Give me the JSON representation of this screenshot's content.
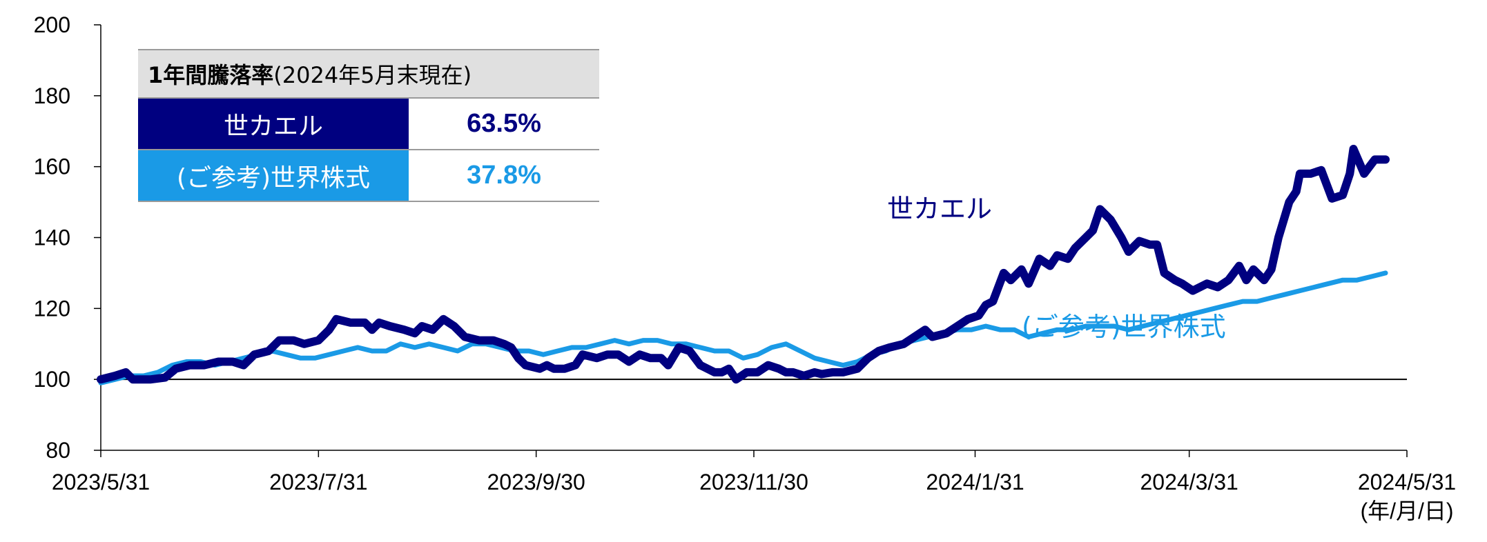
{
  "chart_data": {
    "type": "line",
    "title": "",
    "xlabel": "",
    "ylabel": "",
    "x_unit_label": "(年/月/日)",
    "ylim": [
      80,
      200
    ],
    "yticks": [
      80,
      100,
      120,
      140,
      160,
      180,
      200
    ],
    "xlim": [
      "2023/5/31",
      "2024/5/31"
    ],
    "xticks": [
      "2023/5/31",
      "2023/7/31",
      "2023/9/30",
      "2023/11/30",
      "2024/1/31",
      "2024/3/31",
      "2024/5/31"
    ],
    "reference_line": 100,
    "grid": false,
    "series": [
      {
        "name": "世カエル",
        "color": "#000080",
        "points": [
          [
            "2023/5/31",
            100
          ],
          [
            "2023/6/4",
            101
          ],
          [
            "2023/6/7",
            102
          ],
          [
            "2023/6/9",
            100
          ],
          [
            "2023/6/14",
            100
          ],
          [
            "2023/6/18",
            100.5
          ],
          [
            "2023/6/21",
            103
          ],
          [
            "2023/6/25",
            104
          ],
          [
            "2023/6/29",
            104
          ],
          [
            "2023/7/3",
            105
          ],
          [
            "2023/7/7",
            105
          ],
          [
            "2023/7/10",
            104
          ],
          [
            "2023/7/13",
            107
          ],
          [
            "2023/7/17",
            108
          ],
          [
            "2023/7/20",
            111
          ],
          [
            "2023/7/24",
            111
          ],
          [
            "2023/7/27",
            110
          ],
          [
            "2023/7/31",
            111
          ],
          [
            "2023/8/3",
            114
          ],
          [
            "2023/8/5",
            117
          ],
          [
            "2023/8/9",
            116
          ],
          [
            "2023/8/13",
            116
          ],
          [
            "2023/8/15",
            114
          ],
          [
            "2023/8/17",
            116
          ],
          [
            "2023/8/20",
            115
          ],
          [
            "2023/8/24",
            114
          ],
          [
            "2023/8/27",
            113
          ],
          [
            "2023/8/29",
            115
          ],
          [
            "2023/9/1",
            114
          ],
          [
            "2023/9/4",
            117
          ],
          [
            "2023/9/7",
            115
          ],
          [
            "2023/9/10",
            112
          ],
          [
            "2023/9/14",
            111
          ],
          [
            "2023/9/18",
            111
          ],
          [
            "2023/9/21",
            110
          ],
          [
            "2023/9/23",
            109
          ],
          [
            "2023/9/25",
            106
          ],
          [
            "2023/9/27",
            104
          ],
          [
            "2023/10/1",
            103
          ],
          [
            "2023/10/3",
            104
          ],
          [
            "2023/10/5",
            103
          ],
          [
            "2023/10/8",
            103
          ],
          [
            "2023/10/11",
            104
          ],
          [
            "2023/10/13",
            107
          ],
          [
            "2023/10/17",
            106
          ],
          [
            "2023/10/20",
            107
          ],
          [
            "2023/10/23",
            107
          ],
          [
            "2023/10/26",
            105
          ],
          [
            "2023/10/29",
            107
          ],
          [
            "2023/11/1",
            106
          ],
          [
            "2023/11/4",
            106
          ],
          [
            "2023/11/6",
            104
          ],
          [
            "2023/11/9",
            109
          ],
          [
            "2023/11/12",
            108
          ],
          [
            "2023/11/15",
            104
          ],
          [
            "2023/11/19",
            102
          ],
          [
            "2023/11/21",
            102
          ],
          [
            "2023/11/23",
            103
          ],
          [
            "2023/11/25",
            100
          ],
          [
            "2023/11/28",
            102
          ],
          [
            "2023/12/1",
            102
          ],
          [
            "2023/12/4",
            104
          ],
          [
            "2023/12/7",
            103
          ],
          [
            "2023/12/9",
            102
          ],
          [
            "2023/12/11",
            102
          ],
          [
            "2023/12/14",
            101
          ],
          [
            "2023/12/17",
            102
          ],
          [
            "2023/12/19",
            101.5
          ],
          [
            "2023/12/22",
            102
          ],
          [
            "2023/12/25",
            102
          ],
          [
            "2023/12/29",
            103
          ],
          [
            "2024/1/1",
            106
          ],
          [
            "2024/1/4",
            108
          ],
          [
            "2024/1/7",
            109
          ],
          [
            "2024/1/11",
            110
          ],
          [
            "2024/1/14",
            112
          ],
          [
            "2024/1/17",
            114
          ],
          [
            "2024/1/19",
            112
          ],
          [
            "2024/1/23",
            113
          ],
          [
            "2024/1/26",
            115
          ],
          [
            "2024/1/29",
            117
          ],
          [
            "2024/2/1",
            118
          ],
          [
            "2024/2/3",
            121
          ],
          [
            "2024/2/5",
            122
          ],
          [
            "2024/2/8",
            130
          ],
          [
            "2024/2/10",
            128
          ],
          [
            "2024/2/13",
            131
          ],
          [
            "2024/2/15",
            127
          ],
          [
            "2024/2/18",
            134
          ],
          [
            "2024/2/21",
            132
          ],
          [
            "2024/2/23",
            135
          ],
          [
            "2024/2/26",
            134
          ],
          [
            "2024/2/28",
            137
          ],
          [
            "2024/3/2",
            140
          ],
          [
            "2024/3/4",
            142
          ],
          [
            "2024/3/6",
            148
          ],
          [
            "2024/3/9",
            145
          ],
          [
            "2024/3/12",
            140
          ],
          [
            "2024/3/14",
            136
          ],
          [
            "2024/3/17",
            139
          ],
          [
            "2024/3/20",
            138
          ],
          [
            "2024/3/22",
            138
          ],
          [
            "2024/3/24",
            130
          ],
          [
            "2024/3/27",
            128
          ],
          [
            "2024/3/29",
            127
          ],
          [
            "2024/4/1",
            125
          ],
          [
            "2024/4/5",
            127
          ],
          [
            "2024/4/8",
            126
          ],
          [
            "2024/4/11",
            128
          ],
          [
            "2024/4/14",
            132
          ],
          [
            "2024/4/16",
            128
          ],
          [
            "2024/4/18",
            131
          ],
          [
            "2024/4/21",
            128
          ],
          [
            "2024/4/23",
            131
          ],
          [
            "2024/4/25",
            140
          ],
          [
            "2024/4/28",
            150
          ],
          [
            "2024/4/30",
            153
          ],
          [
            "2024/5/1",
            158
          ],
          [
            "2024/5/4",
            158
          ],
          [
            "2024/5/7",
            159
          ],
          [
            "2024/5/10",
            151
          ],
          [
            "2024/5/13",
            152
          ],
          [
            "2024/5/15",
            158
          ],
          [
            "2024/5/16",
            165
          ],
          [
            "2024/5/19",
            158
          ],
          [
            "2024/5/22",
            162
          ],
          [
            "2024/5/25",
            162
          ]
        ]
      },
      {
        "name": "(ご参考)世界株式",
        "color": "#1a9ae6",
        "points": [
          [
            "2023/5/31",
            99
          ],
          [
            "2023/6/4",
            100
          ],
          [
            "2023/6/8",
            101
          ],
          [
            "2023/6/12",
            101
          ],
          [
            "2023/6/16",
            102
          ],
          [
            "2023/6/20",
            104
          ],
          [
            "2023/6/24",
            105
          ],
          [
            "2023/6/28",
            105
          ],
          [
            "2023/7/2",
            104
          ],
          [
            "2023/7/6",
            105
          ],
          [
            "2023/7/10",
            106
          ],
          [
            "2023/7/14",
            107
          ],
          [
            "2023/7/18",
            108
          ],
          [
            "2023/7/22",
            107
          ],
          [
            "2023/7/26",
            106
          ],
          [
            "2023/7/30",
            106
          ],
          [
            "2023/8/3",
            107
          ],
          [
            "2023/8/7",
            108
          ],
          [
            "2023/8/11",
            109
          ],
          [
            "2023/8/15",
            108
          ],
          [
            "2023/8/19",
            108
          ],
          [
            "2023/8/23",
            110
          ],
          [
            "2023/8/27",
            109
          ],
          [
            "2023/8/31",
            110
          ],
          [
            "2023/9/4",
            109
          ],
          [
            "2023/9/8",
            108
          ],
          [
            "2023/9/12",
            110
          ],
          [
            "2023/9/16",
            110
          ],
          [
            "2023/9/20",
            109
          ],
          [
            "2023/9/24",
            108
          ],
          [
            "2023/9/28",
            108
          ],
          [
            "2023/10/2",
            107
          ],
          [
            "2023/10/6",
            108
          ],
          [
            "2023/10/10",
            109
          ],
          [
            "2023/10/14",
            109
          ],
          [
            "2023/10/18",
            110
          ],
          [
            "2023/10/22",
            111
          ],
          [
            "2023/10/26",
            110
          ],
          [
            "2023/10/30",
            111
          ],
          [
            "2023/11/3",
            111
          ],
          [
            "2023/11/7",
            110
          ],
          [
            "2023/11/11",
            110
          ],
          [
            "2023/11/15",
            109
          ],
          [
            "2023/11/19",
            108
          ],
          [
            "2023/11/23",
            108
          ],
          [
            "2023/11/27",
            106
          ],
          [
            "2023/12/1",
            107
          ],
          [
            "2023/12/5",
            109
          ],
          [
            "2023/12/9",
            110
          ],
          [
            "2023/12/13",
            108
          ],
          [
            "2023/12/17",
            106
          ],
          [
            "2023/12/21",
            105
          ],
          [
            "2023/12/25",
            104
          ],
          [
            "2023/12/29",
            105
          ],
          [
            "2024/1/2",
            107
          ],
          [
            "2024/1/6",
            108
          ],
          [
            "2024/1/10",
            110
          ],
          [
            "2024/1/14",
            111
          ],
          [
            "2024/1/18",
            112
          ],
          [
            "2024/1/22",
            113
          ],
          [
            "2024/1/26",
            114
          ],
          [
            "2024/1/30",
            114
          ],
          [
            "2024/2/3",
            115
          ],
          [
            "2024/2/7",
            114
          ],
          [
            "2024/2/11",
            114
          ],
          [
            "2024/2/15",
            112
          ],
          [
            "2024/2/19",
            113
          ],
          [
            "2024/2/23",
            114
          ],
          [
            "2024/2/27",
            114
          ],
          [
            "2024/3/2",
            115
          ],
          [
            "2024/3/6",
            115
          ],
          [
            "2024/3/10",
            115
          ],
          [
            "2024/3/14",
            114
          ],
          [
            "2024/3/18",
            115
          ],
          [
            "2024/3/22",
            116
          ],
          [
            "2024/3/26",
            117
          ],
          [
            "2024/3/30",
            118
          ],
          [
            "2024/4/3",
            119
          ],
          [
            "2024/4/7",
            120
          ],
          [
            "2024/4/11",
            121
          ],
          [
            "2024/4/15",
            122
          ],
          [
            "2024/4/19",
            122
          ],
          [
            "2024/4/23",
            123
          ],
          [
            "2024/4/27",
            124
          ],
          [
            "2024/5/1",
            125
          ],
          [
            "2024/5/5",
            126
          ],
          [
            "2024/5/9",
            127
          ],
          [
            "2024/5/13",
            128
          ],
          [
            "2024/5/17",
            128
          ],
          [
            "2024/5/21",
            129
          ],
          [
            "2024/5/25",
            130
          ]
        ]
      }
    ],
    "series_labels": [
      {
        "text": "世カエル",
        "color": "#000080"
      },
      {
        "text": "(ご参考)世界株式",
        "color": "#1a9ae6"
      }
    ]
  },
  "legend_table": {
    "header_bold": "1年間騰落率",
    "header_normal": "(2024年5月末現在)",
    "rows": [
      {
        "name": "世カエル",
        "value": "63.5%",
        "name_bg": "#000080",
        "value_color": "#000080"
      },
      {
        "name": "(ご参考)世界株式",
        "value": "37.8%",
        "name_bg": "#1a9ae6",
        "value_color": "#1a9ae6"
      }
    ]
  }
}
